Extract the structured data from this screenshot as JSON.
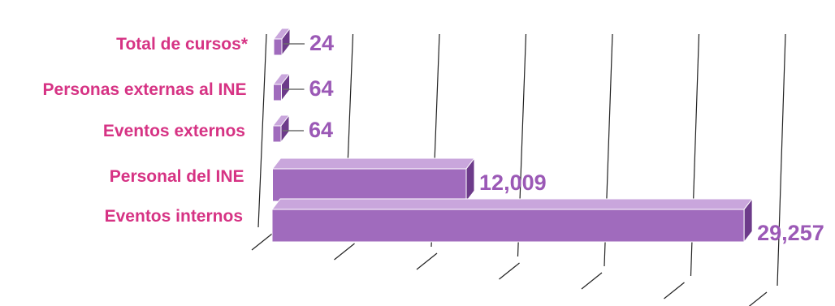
{
  "chart_data": {
    "type": "bar",
    "orientation": "horizontal",
    "three_d": true,
    "categories": [
      "Total de cursos*",
      "Personas externas al INE",
      "Eventos externos",
      "Personal del INE",
      "Eventos internos"
    ],
    "values": [
      24,
      64,
      64,
      12009,
      29257
    ],
    "value_labels": [
      "24",
      "64",
      "64",
      "12,009",
      "29,257"
    ],
    "title": "",
    "xlabel": "",
    "ylabel": "",
    "xlim": [
      0,
      30000
    ],
    "grid": true,
    "legend": "none",
    "colors": {
      "category_label": "#d63384",
      "value_label": "#9b59b6",
      "bar_front": "#a06bbd",
      "bar_top": "#c9a6dc",
      "bar_side": "#6d3b8a",
      "grid": "#222222"
    }
  }
}
